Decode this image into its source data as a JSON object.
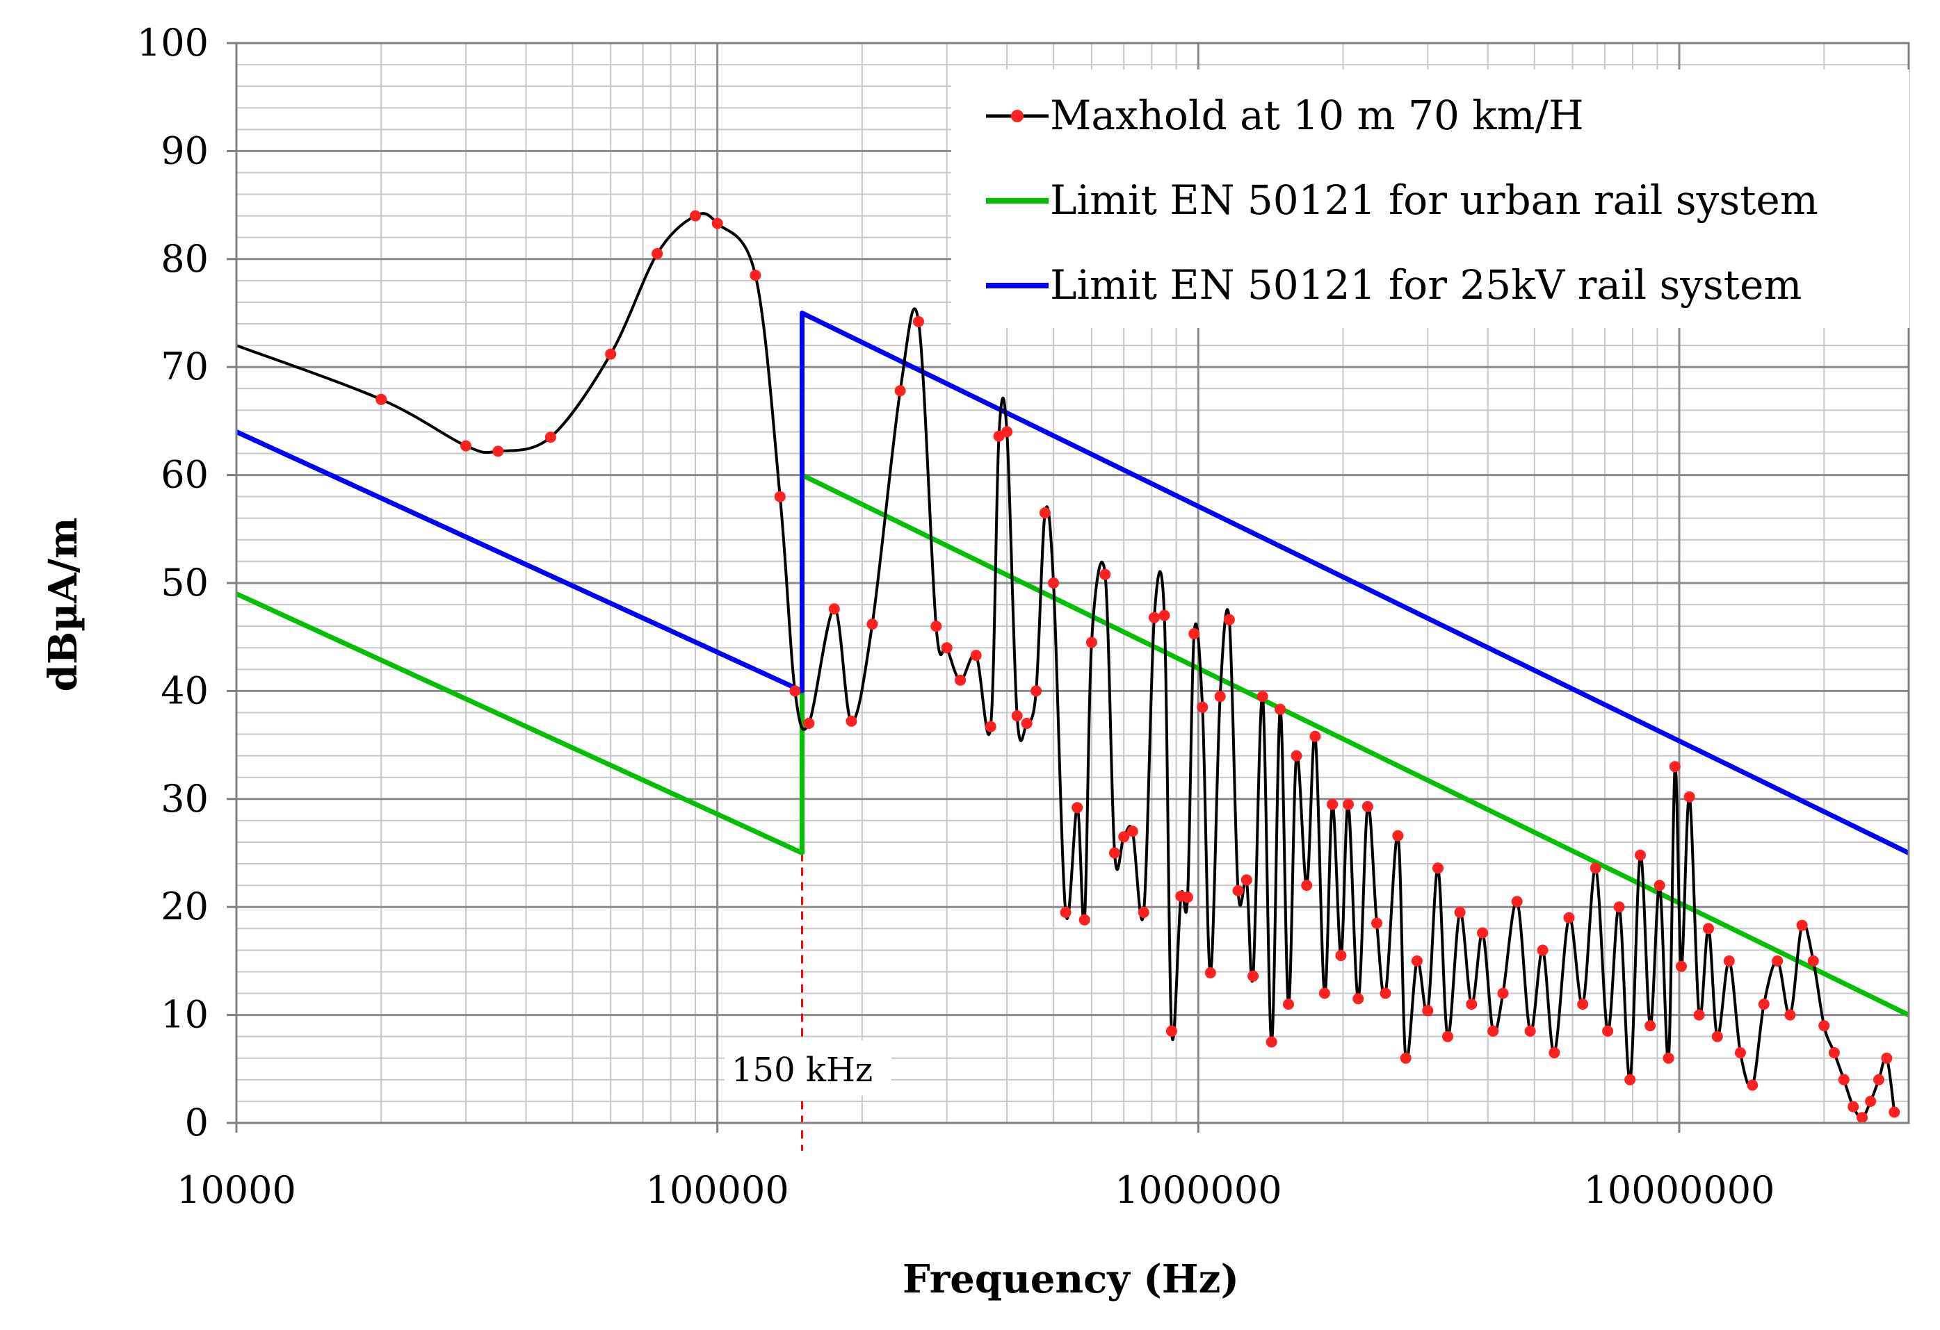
{
  "chart_data": {
    "type": "line",
    "x_scale": "log",
    "xlabel": "Frequency (Hz)",
    "ylabel": "dBµA/m",
    "xlim": [
      10000,
      30000000
    ],
    "ylim": [
      0,
      100
    ],
    "x_ticks": [
      10000,
      100000,
      1000000,
      10000000
    ],
    "x_tick_labels": [
      "10000",
      "100000",
      "1000000",
      "10000000"
    ],
    "y_ticks": [
      0,
      10,
      20,
      30,
      40,
      50,
      60,
      70,
      80,
      90,
      100
    ],
    "y_tick_labels": [
      "0",
      "10",
      "20",
      "30",
      "40",
      "50",
      "60",
      "70",
      "80",
      "90",
      "100"
    ],
    "grid": true,
    "legend_position": "top-right",
    "annotation": {
      "label": "150 kHz",
      "x": 150000,
      "style": "dashed-vertical",
      "color": "#ff0000"
    },
    "series": [
      {
        "name": "Maxhold at 10 m 70 km/H",
        "color": "#000000",
        "marker_color": "#ff2020",
        "marker": "circle",
        "x": [
          10000,
          20000,
          30000,
          35000,
          45000,
          60000,
          75000,
          90000,
          100000,
          120000,
          135000,
          145000,
          155000,
          175000,
          190000,
          210000,
          240000,
          262000,
          285000,
          300000,
          320000,
          345000,
          370000,
          385000,
          400000,
          420000,
          440000,
          460000,
          480000,
          500000,
          530000,
          560000,
          580000,
          600000,
          640000,
          670000,
          700000,
          730000,
          770000,
          810000,
          850000,
          880000,
          920000,
          950000,
          980000,
          1020000,
          1060000,
          1110000,
          1160000,
          1210000,
          1260000,
          1300000,
          1360000,
          1420000,
          1480000,
          1540000,
          1600000,
          1680000,
          1750000,
          1830000,
          1900000,
          1980000,
          2050000,
          2150000,
          2250000,
          2350000,
          2450000,
          2600000,
          2700000,
          2850000,
          3000000,
          3150000,
          3300000,
          3500000,
          3700000,
          3900000,
          4100000,
          4300000,
          4600000,
          4900000,
          5200000,
          5500000,
          5900000,
          6300000,
          6700000,
          7100000,
          7500000,
          7900000,
          8300000,
          8700000,
          9100000,
          9500000,
          9800000,
          10100000,
          10500000,
          11000000,
          11500000,
          12000000,
          12700000,
          13400000,
          14200000,
          15000000,
          16000000,
          17000000,
          18000000,
          19000000,
          20000000,
          21000000,
          22000000,
          23000000,
          24000000,
          25000000,
          26000000,
          27000000,
          28000000
        ],
        "y": [
          72,
          67,
          62.7,
          62.2,
          63.5,
          71.2,
          80.5,
          84,
          83.3,
          78.5,
          58,
          40,
          37,
          47.6,
          37.2,
          46.2,
          67.8,
          74.2,
          46,
          44,
          41,
          43.3,
          36.7,
          63.6,
          64,
          37.7,
          37,
          40,
          56.5,
          50,
          19.5,
          29.2,
          18.8,
          44.5,
          50.8,
          25,
          26.5,
          27,
          19.5,
          46.8,
          47,
          8.5,
          21,
          20.9,
          45.3,
          38.5,
          13.9,
          39.5,
          46.6,
          21.5,
          22.5,
          13.6,
          39.5,
          7.5,
          38.3,
          11,
          34,
          22,
          35.8,
          12,
          29.5,
          15.5,
          29.5,
          11.5,
          29.3,
          18.5,
          12,
          26.6,
          6,
          15,
          10.4,
          23.6,
          8,
          19.5,
          11,
          17.6,
          8.5,
          12,
          20.5,
          8.5,
          16,
          6.5,
          19,
          11,
          23.6,
          8.5,
          20,
          4,
          24.8,
          9,
          22,
          6,
          33,
          14.5,
          30.2,
          10,
          18,
          8,
          15,
          6.5,
          3.5,
          11,
          15,
          10,
          18.3,
          15,
          9,
          6.5,
          4,
          1.5,
          0.5,
          2,
          4,
          6,
          1
        ],
        "points_shown": true
      },
      {
        "name": "Limit EN 50121 for urban rail system",
        "color": "#00c000",
        "x": [
          10000,
          150000,
          150000,
          30000000
        ],
        "y": [
          49,
          25,
          60,
          10
        ]
      },
      {
        "name": "Limit EN 50121 for 25kV rail system",
        "color": "#0000ff",
        "x": [
          10000,
          150000,
          150000,
          30000000
        ],
        "y": [
          64,
          40,
          75,
          25
        ]
      }
    ]
  }
}
